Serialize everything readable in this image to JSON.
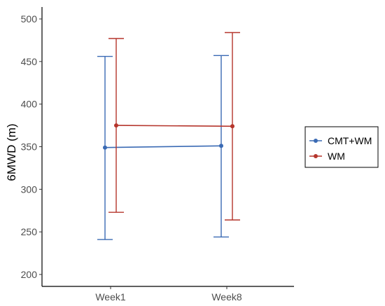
{
  "chart_data": {
    "type": "line",
    "title": "",
    "xlabel": "",
    "ylabel": "6MWD (m)",
    "categories": [
      "Week1",
      "Week8"
    ],
    "ylim": [
      186,
      514
    ],
    "yticks": [
      200,
      250,
      300,
      350,
      400,
      450,
      500
    ],
    "grid": false,
    "legend_position": "right",
    "series": [
      {
        "name": "CMT+WM",
        "color": "#3a6ab4",
        "values": [
          349,
          351
        ],
        "error_lower": [
          241,
          244
        ],
        "error_upper": [
          456,
          457
        ]
      },
      {
        "name": "WM",
        "color": "#b5352c",
        "values": [
          375,
          374
        ],
        "error_lower": [
          273,
          264
        ],
        "error_upper": [
          477,
          484
        ]
      }
    ]
  }
}
